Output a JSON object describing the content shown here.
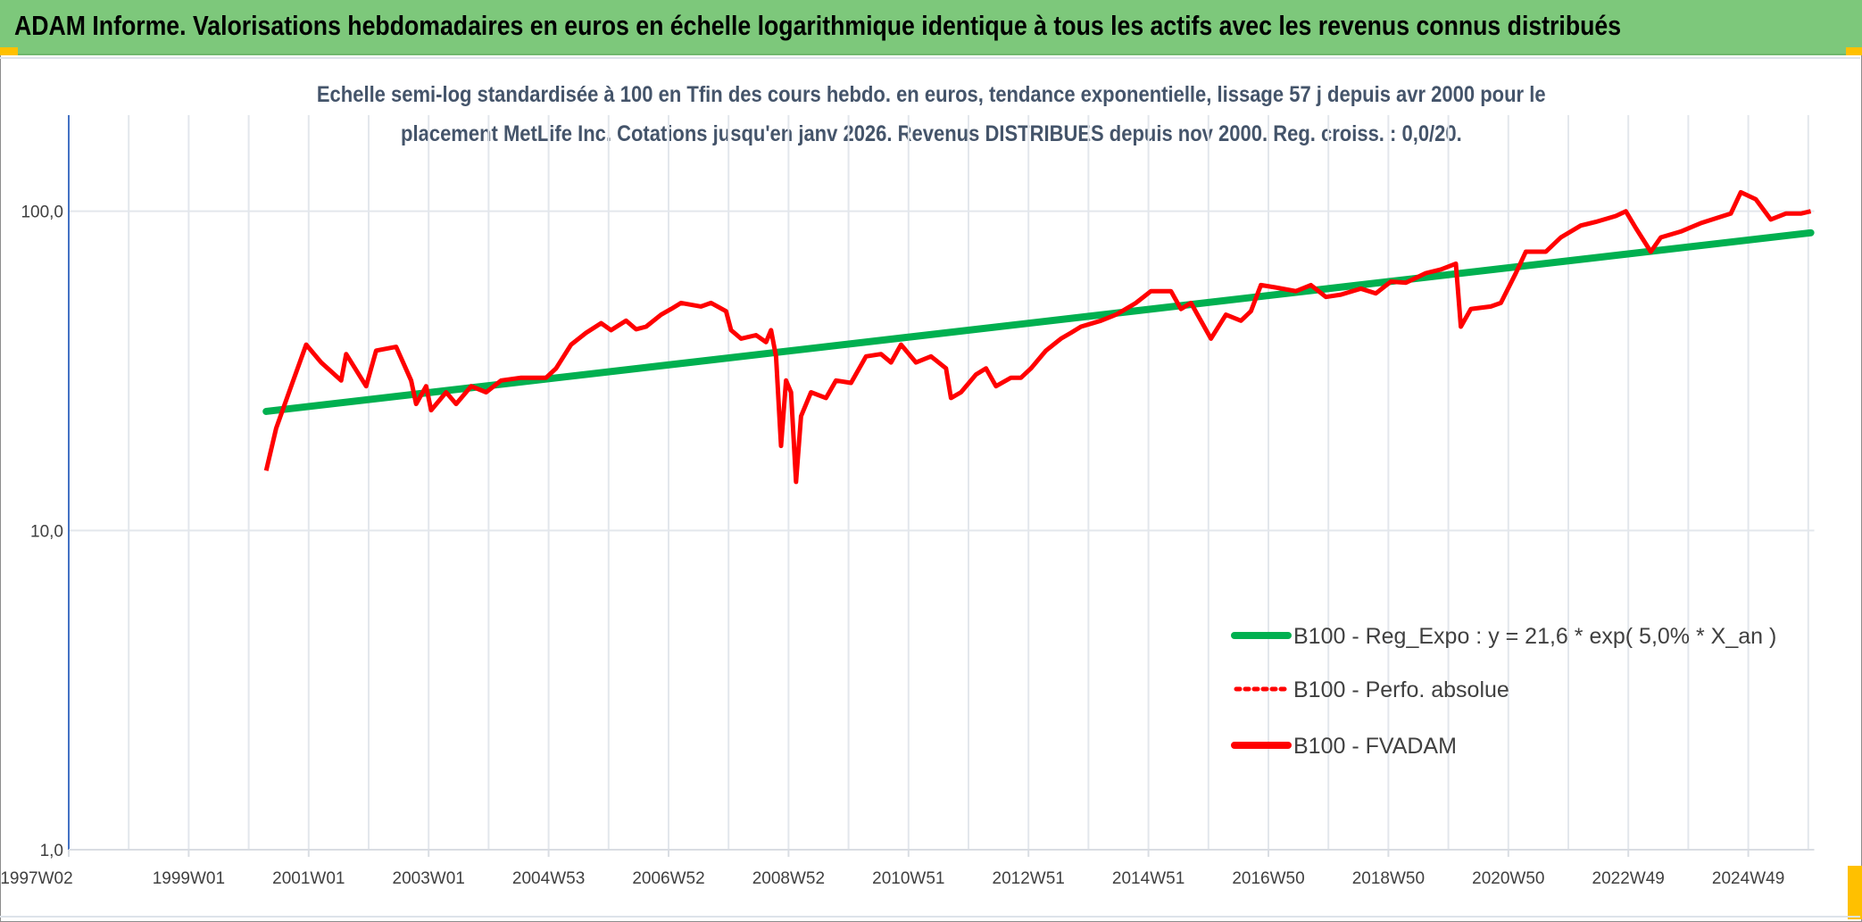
{
  "header": {
    "title": "ADAM Informe. Valorisations hebdomadaires en euros en échelle logarithmique identique à tous les actifs avec les revenus connus distribués"
  },
  "colors": {
    "title_bar": "#7dc87b",
    "accent_corner": "#ffc000",
    "trend": "#00b050",
    "fvadam": "#ff0000",
    "perfo": "#ff0000",
    "subtitle": "#44546a"
  },
  "chart_data": {
    "type": "line",
    "title_lines": [
      "Echelle semi-log standardisée à 100 en Tfin des cours hebdo. en euros, tendance exponentielle, lissage 57 j depuis avr 2000 pour le",
      "placement MetLife Inc. Cotations jusqu'en janv 2026. Revenus DISTRIBUES depuis nov 2000. Reg. croiss. : 0,0/20."
    ],
    "y_scale": "log",
    "ylim": [
      1,
      200
    ],
    "y_ticks": [
      {
        "value": 1,
        "label": "1,0"
      },
      {
        "value": 10,
        "label": "10,0"
      },
      {
        "value": 100,
        "label": "100,0"
      }
    ],
    "x_range": [
      "1997W02",
      "2026W04"
    ],
    "x_ticks": [
      "1997W02",
      "1999W01",
      "2001W01",
      "2003W01",
      "2004W53",
      "2006W52",
      "2008W52",
      "2010W51",
      "2012W51",
      "2014W51",
      "2016W50",
      "2018W50",
      "2020W50",
      "2022W49",
      "2024W49"
    ],
    "grid": {
      "vertical": "yearly",
      "horizontal": "decades"
    },
    "legend_position": "right",
    "legend": [
      {
        "name": "B100 - Reg_Expo : y = 21,6 * exp( 5,0% *  X_an )",
        "style": "solid-green"
      },
      {
        "name": "B100 - Perfo. absolue",
        "style": "dotted-red"
      },
      {
        "name": "B100 - FVADAM",
        "style": "solid-red"
      }
    ],
    "series": [
      {
        "name": "B100 - Reg_Expo : y = 21,6 * exp( 5,0% *  X_an )",
        "kind": "exponential-trend",
        "points": [
          {
            "date": "2000-04",
            "value": 23.6
          },
          {
            "date": "2026-01",
            "value": 85.6
          }
        ]
      },
      {
        "name": "B100 - Perfo. absolue",
        "points": []
      },
      {
        "name": "B100 - FVADAM",
        "points": [
          [
            "2000-04",
            15.4
          ],
          [
            "2000-06",
            20.9
          ],
          [
            "2000-09",
            28.3
          ],
          [
            "2000-12",
            38.2
          ],
          [
            "2001-03",
            33.6
          ],
          [
            "2001-07",
            29.5
          ],
          [
            "2001-08",
            35.7
          ],
          [
            "2001-12",
            28.3
          ],
          [
            "2002-02",
            36.6
          ],
          [
            "2002-06",
            37.6
          ],
          [
            "2002-09",
            29.5
          ],
          [
            "2002-10",
            24.9
          ],
          [
            "2002-12",
            28.3
          ],
          [
            "2003-01",
            23.8
          ],
          [
            "2003-04",
            27.1
          ],
          [
            "2003-06",
            24.9
          ],
          [
            "2003-09",
            28.3
          ],
          [
            "2003-12",
            27.1
          ],
          [
            "2004-03",
            29.5
          ],
          [
            "2004-07",
            30.1
          ],
          [
            "2004-12",
            30.1
          ],
          [
            "2005-02",
            32.2
          ],
          [
            "2005-05",
            38.2
          ],
          [
            "2005-08",
            41.6
          ],
          [
            "2005-11",
            44.6
          ],
          [
            "2006-01",
            42.4
          ],
          [
            "2006-04",
            45.4
          ],
          [
            "2006-06",
            42.7
          ],
          [
            "2006-08",
            43.5
          ],
          [
            "2006-11",
            47.4
          ],
          [
            "2007-01",
            49.4
          ],
          [
            "2007-03",
            51.6
          ],
          [
            "2007-07",
            50.3
          ],
          [
            "2007-09",
            51.6
          ],
          [
            "2007-12",
            48.6
          ],
          [
            "2008-01",
            42.4
          ],
          [
            "2008-03",
            39.9
          ],
          [
            "2008-06",
            40.9
          ],
          [
            "2008-08",
            38.9
          ],
          [
            "2008-09",
            42.4
          ],
          [
            "2008-10",
            35.1
          ],
          [
            "2008-11",
            18.4
          ],
          [
            "2008-12",
            29.5
          ],
          [
            "2009-01",
            27.1
          ],
          [
            "2009-02",
            14.2
          ],
          [
            "2009-03",
            22.8
          ],
          [
            "2009-05",
            27.1
          ],
          [
            "2009-08",
            26.0
          ],
          [
            "2009-10",
            29.5
          ],
          [
            "2010-01",
            29.0
          ],
          [
            "2010-04",
            35.1
          ],
          [
            "2010-07",
            35.7
          ],
          [
            "2010-09",
            33.6
          ],
          [
            "2010-11",
            38.2
          ],
          [
            "2011-02",
            33.6
          ],
          [
            "2011-05",
            35.1
          ],
          [
            "2011-08",
            32.2
          ],
          [
            "2011-09",
            26.0
          ],
          [
            "2011-11",
            27.1
          ],
          [
            "2012-02",
            30.8
          ],
          [
            "2012-04",
            32.2
          ],
          [
            "2012-06",
            28.3
          ],
          [
            "2012-09",
            30.1
          ],
          [
            "2012-11",
            30.1
          ],
          [
            "2013-01",
            32.2
          ],
          [
            "2013-04",
            36.6
          ],
          [
            "2013-07",
            39.9
          ],
          [
            "2013-09",
            41.6
          ],
          [
            "2013-11",
            43.5
          ],
          [
            "2014-03",
            45.4
          ],
          [
            "2014-06",
            47.4
          ],
          [
            "2014-10",
            51.6
          ],
          [
            "2015-01",
            56.2
          ],
          [
            "2015-05",
            56.2
          ],
          [
            "2015-07",
            49.4
          ],
          [
            "2015-09",
            51.6
          ],
          [
            "2016-01",
            39.9
          ],
          [
            "2016-04",
            47.4
          ],
          [
            "2016-07",
            45.4
          ],
          [
            "2016-09",
            48.6
          ],
          [
            "2016-11",
            58.7
          ],
          [
            "2017-02",
            57.7
          ],
          [
            "2017-06",
            56.2
          ],
          [
            "2017-09",
            58.7
          ],
          [
            "2017-12",
            53.9
          ],
          [
            "2018-03",
            54.8
          ],
          [
            "2018-07",
            57.2
          ],
          [
            "2018-10",
            55.3
          ],
          [
            "2019-01",
            60.2
          ],
          [
            "2019-04",
            59.7
          ],
          [
            "2019-08",
            64.0
          ],
          [
            "2019-11",
            65.7
          ],
          [
            "2020-02",
            68.5
          ],
          [
            "2020-03",
            43.5
          ],
          [
            "2020-05",
            49.4
          ],
          [
            "2020-09",
            50.3
          ],
          [
            "2020-11",
            51.6
          ],
          [
            "2021-02",
            64.0
          ],
          [
            "2021-04",
            74.7
          ],
          [
            "2021-08",
            74.7
          ],
          [
            "2021-11",
            82.8
          ],
          [
            "2022-03",
            90.2
          ],
          [
            "2022-06",
            92.6
          ],
          [
            "2022-10",
            96.6
          ],
          [
            "2022-12",
            100.0
          ],
          [
            "2023-02",
            88.6
          ],
          [
            "2023-05",
            74.7
          ],
          [
            "2023-07",
            82.8
          ],
          [
            "2023-11",
            86.4
          ],
          [
            "2024-03",
            91.8
          ],
          [
            "2024-06",
            95.0
          ],
          [
            "2024-09",
            98.3
          ],
          [
            "2024-11",
            114.7
          ],
          [
            "2025-02",
            109.0
          ],
          [
            "2025-05",
            94.2
          ],
          [
            "2025-08",
            98.3
          ],
          [
            "2025-11",
            98.3
          ],
          [
            "2026-01",
            100.0
          ]
        ]
      }
    ]
  }
}
